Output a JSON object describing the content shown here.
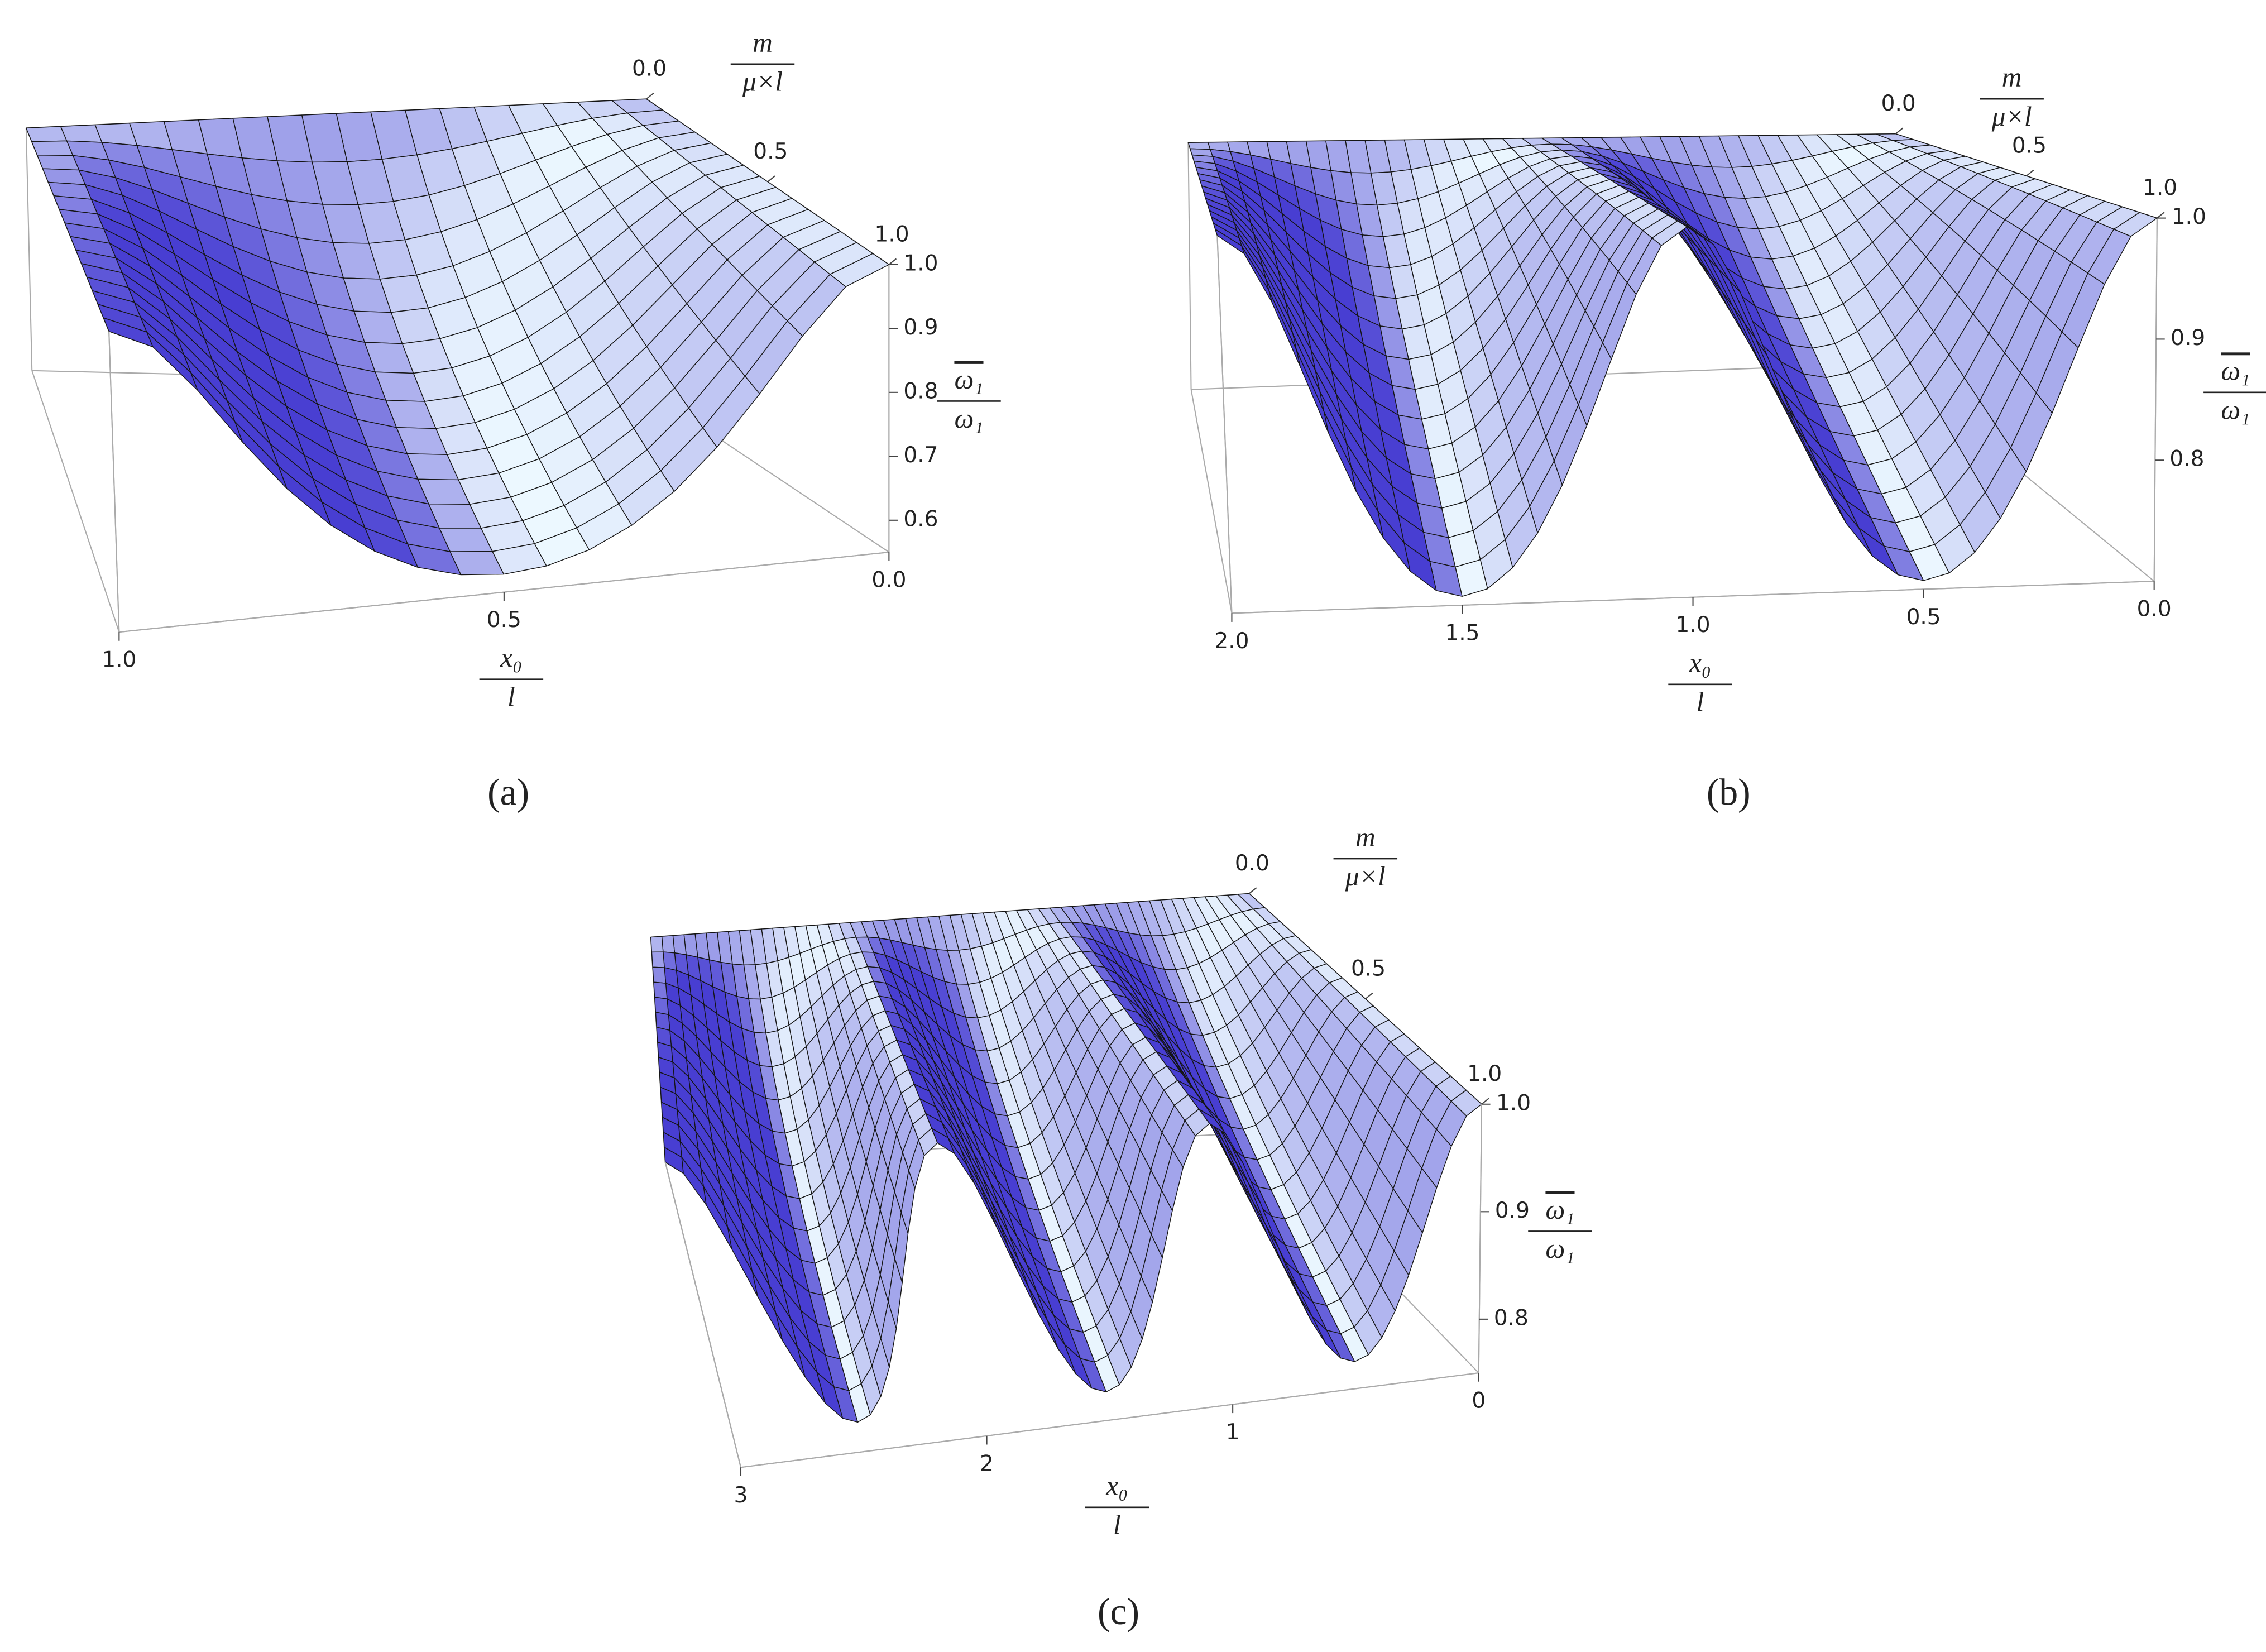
{
  "chart_data": [
    {
      "type": "surface3d",
      "label": "(a)",
      "x_label": {
        "numerator": "x₀",
        "denominator": "l"
      },
      "y_label": {
        "numerator": "m",
        "denominator": "μ×l"
      },
      "z_label": {
        "numerator": "ω₁",
        "denominator": "ω₁"
      },
      "xlim": [
        0,
        1
      ],
      "xticks": [
        {
          "value": 0,
          "label": "0.0"
        },
        0.5,
        {
          "value": 1,
          "label": "1.0"
        }
      ],
      "ylim": [
        0,
        1
      ],
      "yticks": [
        {
          "value": 0,
          "label": "0.0"
        },
        0.5,
        {
          "value": 1,
          "label": "1.0"
        }
      ],
      "zlim": [
        0.55,
        1
      ],
      "zticks": [
        0.6,
        0.7,
        0.8,
        0.9,
        {
          "value": 1,
          "label": "1.0"
        }
      ]
    },
    {
      "type": "surface3d",
      "label": "(b)",
      "x_label": {
        "numerator": "x₀",
        "denominator": "l"
      },
      "y_label": {
        "numerator": "m",
        "denominator": "μ×l"
      },
      "z_label": {
        "numerator": "ω₁",
        "denominator": "ω₁"
      },
      "xlim": [
        0,
        2
      ],
      "xticks": [
        {
          "value": 0,
          "label": "0.0"
        },
        0.5,
        {
          "value": 1,
          "label": "1.0"
        },
        1.5,
        {
          "value": 2,
          "label": "2.0"
        }
      ],
      "ylim": [
        0,
        1
      ],
      "yticks": [
        {
          "value": 0,
          "label": "0.0"
        },
        0.5,
        {
          "value": 1,
          "label": "1.0"
        }
      ],
      "zlim": [
        0.7,
        1
      ],
      "zticks": [
        0.8,
        0.9,
        {
          "value": 1,
          "label": "1.0"
        }
      ]
    },
    {
      "type": "surface3d",
      "label": "(c)",
      "x_label": {
        "numerator": "x₀",
        "denominator": "l"
      },
      "y_label": {
        "numerator": "m",
        "denominator": "μ×l"
      },
      "z_label": {
        "numerator": "ω₁",
        "denominator": "ω₁"
      },
      "xlim": [
        0,
        3
      ],
      "xticks": [
        0,
        1,
        2,
        3
      ],
      "ylim": [
        0,
        1
      ],
      "yticks": [
        {
          "value": 0,
          "label": "0.0"
        },
        0.5,
        {
          "value": 1,
          "label": "1.0"
        }
      ],
      "zlim": [
        0.75,
        1
      ],
      "zticks": [
        0.8,
        0.9,
        {
          "value": 1,
          "label": "1.0"
        }
      ]
    }
  ]
}
